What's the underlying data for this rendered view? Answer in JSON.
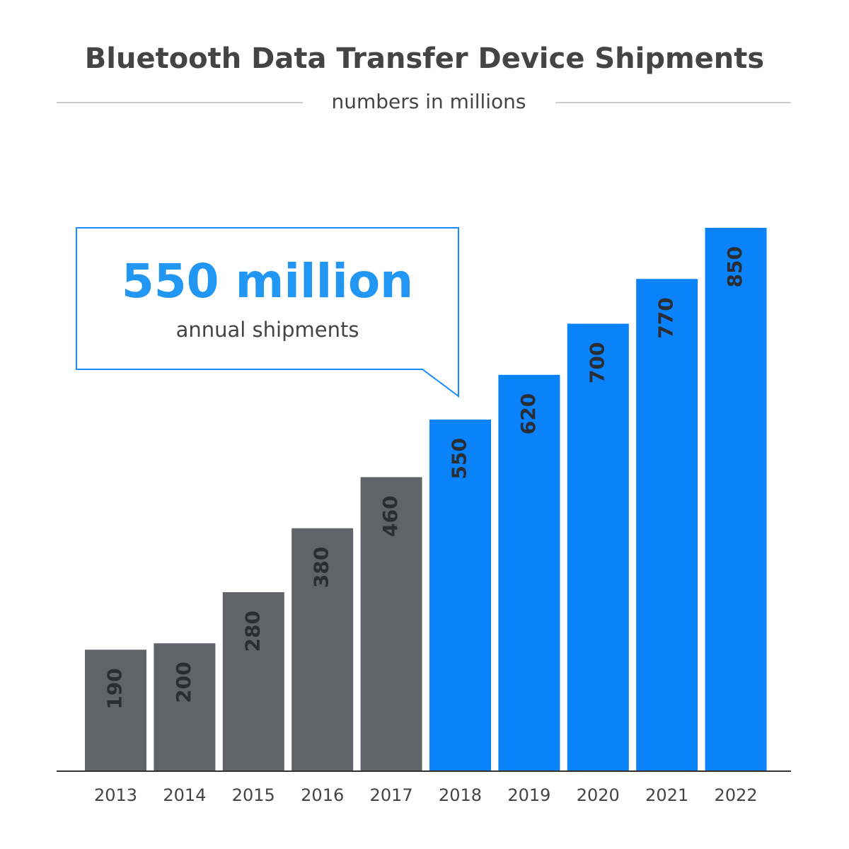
{
  "chart_data": {
    "type": "bar",
    "title": "Bluetooth Data Transfer Device Shipments",
    "subtitle": "numbers in millions",
    "annotation": {
      "headline": "550 million",
      "text": "annual shipments"
    },
    "categories": [
      "2013",
      "2014",
      "2015",
      "2016",
      "2017",
      "2018",
      "2019",
      "2020",
      "2021",
      "2022"
    ],
    "values": [
      190,
      200,
      280,
      380,
      460,
      550,
      620,
      700,
      770,
      850
    ],
    "colors": [
      "#606468",
      "#606468",
      "#606468",
      "#606468",
      "#606468",
      "#0a82fa",
      "#0a82fa",
      "#0a82fa",
      "#0a82fa",
      "#0a82fa"
    ]
  }
}
